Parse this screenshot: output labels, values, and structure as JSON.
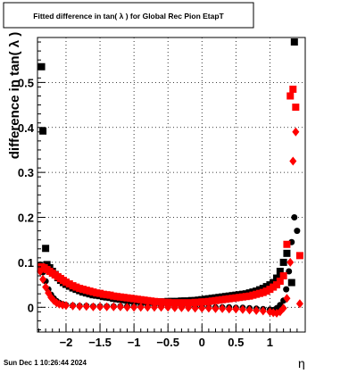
{
  "chart_data": {
    "type": "scatter",
    "title": "Fitted difference in tan( λ ) for Global Rec Pion EtapT",
    "xlabel": "η",
    "ylabel": "difference in tan( λ )",
    "xlim": [
      -2.42,
      1.52
    ],
    "ylim": [
      -0.055,
      0.6
    ],
    "x_ticks": [
      -2,
      -1.5,
      -1,
      -0.5,
      0,
      0.5,
      1
    ],
    "x_tick_labels": [
      "−2",
      "−1.5",
      "−1",
      "−0.5",
      "0",
      "0.5",
      "1"
    ],
    "y_ticks": [
      0,
      0.1,
      0.2,
      0.3,
      0.4,
      0.5
    ],
    "y_tick_labels": [
      "0",
      "0.1",
      "0.2",
      "0.3",
      "0.4",
      "0.5"
    ],
    "grid": true,
    "legend": "none",
    "series": [
      {
        "marker": "square",
        "color": "#000000",
        "points": [
          [
            -2.36,
            0.535
          ],
          [
            -2.34,
            0.392
          ],
          [
            -2.3,
            0.131
          ],
          [
            -2.28,
            0.095
          ],
          [
            -2.24,
            0.088
          ],
          [
            -2.2,
            0.08
          ],
          [
            -2.16,
            0.073
          ],
          [
            -2.12,
            0.066
          ],
          [
            -2.08,
            0.06
          ],
          [
            -2.04,
            0.055
          ],
          [
            -2.0,
            0.051
          ],
          [
            -1.95,
            0.047
          ],
          [
            -1.9,
            0.043
          ],
          [
            -1.85,
            0.04
          ],
          [
            -1.8,
            0.037
          ],
          [
            -1.75,
            0.034
          ],
          [
            -1.7,
            0.032
          ],
          [
            -1.65,
            0.03
          ],
          [
            -1.6,
            0.028
          ],
          [
            -1.55,
            0.027
          ],
          [
            -1.5,
            0.026
          ],
          [
            -1.45,
            0.024
          ],
          [
            -1.4,
            0.023
          ],
          [
            -1.35,
            0.022
          ],
          [
            -1.3,
            0.02
          ],
          [
            -1.25,
            0.019
          ],
          [
            -1.2,
            0.018
          ],
          [
            -1.15,
            0.017
          ],
          [
            -1.1,
            0.016
          ],
          [
            -1.05,
            0.015
          ],
          [
            -1.0,
            0.015
          ],
          [
            -0.95,
            0.014
          ],
          [
            -0.9,
            0.014
          ],
          [
            -0.85,
            0.013
          ],
          [
            -0.8,
            0.013
          ],
          [
            -0.75,
            0.013
          ],
          [
            -0.7,
            0.012
          ],
          [
            -0.65,
            0.012
          ],
          [
            -0.6,
            0.012
          ],
          [
            -0.55,
            0.012
          ],
          [
            -0.5,
            0.013
          ],
          [
            -0.45,
            0.013
          ],
          [
            -0.4,
            0.013
          ],
          [
            -0.35,
            0.013
          ],
          [
            -0.3,
            0.014
          ],
          [
            -0.25,
            0.014
          ],
          [
            -0.2,
            0.014
          ],
          [
            -0.15,
            0.015
          ],
          [
            -0.1,
            0.015
          ],
          [
            -0.05,
            0.016
          ],
          [
            0.0,
            0.017
          ],
          [
            0.05,
            0.018
          ],
          [
            0.1,
            0.019
          ],
          [
            0.15,
            0.02
          ],
          [
            0.2,
            0.021
          ],
          [
            0.25,
            0.022
          ],
          [
            0.3,
            0.023
          ],
          [
            0.35,
            0.024
          ],
          [
            0.4,
            0.025
          ],
          [
            0.45,
            0.026
          ],
          [
            0.5,
            0.027
          ],
          [
            0.55,
            0.028
          ],
          [
            0.6,
            0.029
          ],
          [
            0.65,
            0.03
          ],
          [
            0.7,
            0.032
          ],
          [
            0.75,
            0.034
          ],
          [
            0.8,
            0.036
          ],
          [
            0.85,
            0.039
          ],
          [
            0.9,
            0.042
          ],
          [
            0.95,
            0.046
          ],
          [
            1.0,
            0.05
          ],
          [
            1.05,
            0.055
          ],
          [
            1.1,
            0.065
          ],
          [
            1.15,
            0.08
          ],
          [
            1.2,
            0.1
          ],
          [
            1.25,
            0.12
          ],
          [
            1.32,
            0.055
          ],
          [
            1.36,
            0.59
          ]
        ]
      },
      {
        "marker": "circle",
        "color": "#000000",
        "points": [
          [
            -2.38,
            0.095
          ],
          [
            -2.34,
            0.078
          ],
          [
            -2.3,
            0.058
          ],
          [
            -2.26,
            0.04
          ],
          [
            -2.22,
            0.028
          ],
          [
            -2.18,
            0.02
          ],
          [
            -2.14,
            0.014
          ],
          [
            -2.1,
            0.01
          ],
          [
            -2.05,
            0.007
          ],
          [
            -2.0,
            0.005
          ],
          [
            -1.9,
            0.004
          ],
          [
            -1.8,
            0.003
          ],
          [
            -1.7,
            0.003
          ],
          [
            -1.6,
            0.002
          ],
          [
            -1.5,
            0.002
          ],
          [
            -1.4,
            0.002
          ],
          [
            -1.3,
            0.002
          ],
          [
            -1.2,
            0.002
          ],
          [
            -1.1,
            0.002
          ],
          [
            -1.0,
            0.002
          ],
          [
            -0.9,
            0.002
          ],
          [
            -0.8,
            0.002
          ],
          [
            -0.7,
            0.002
          ],
          [
            -0.6,
            0.002
          ],
          [
            -0.5,
            0.001
          ],
          [
            -0.4,
            0.001
          ],
          [
            -0.3,
            0.001
          ],
          [
            -0.2,
            0.001
          ],
          [
            -0.1,
            0.001
          ],
          [
            0.0,
            0.001
          ],
          [
            0.1,
            0.0
          ],
          [
            0.2,
            0.0
          ],
          [
            0.3,
            0.0
          ],
          [
            0.4,
            0.0
          ],
          [
            0.5,
            -0.001
          ],
          [
            0.6,
            -0.001
          ],
          [
            0.7,
            -0.002
          ],
          [
            0.8,
            -0.003
          ],
          [
            0.9,
            -0.004
          ],
          [
            1.0,
            -0.005
          ],
          [
            1.05,
            -0.006
          ],
          [
            1.1,
            -0.002
          ],
          [
            1.15,
            0.005
          ],
          [
            1.2,
            0.015
          ],
          [
            1.24,
            0.04
          ],
          [
            1.28,
            0.08
          ],
          [
            1.32,
            0.145
          ],
          [
            1.36,
            0.2
          ],
          [
            1.4,
            0.17
          ]
        ]
      },
      {
        "marker": "square",
        "color": "#ff0000",
        "points": [
          [
            -2.36,
            0.09
          ],
          [
            -2.32,
            0.088
          ],
          [
            -2.28,
            0.084
          ],
          [
            -2.24,
            0.08
          ],
          [
            -2.2,
            0.076
          ],
          [
            -2.16,
            0.072
          ],
          [
            -2.12,
            0.068
          ],
          [
            -2.08,
            0.064
          ],
          [
            -2.04,
            0.06
          ],
          [
            -2.0,
            0.056
          ],
          [
            -1.95,
            0.052
          ],
          [
            -1.9,
            0.048
          ],
          [
            -1.85,
            0.045
          ],
          [
            -1.8,
            0.042
          ],
          [
            -1.75,
            0.04
          ],
          [
            -1.7,
            0.038
          ],
          [
            -1.65,
            0.036
          ],
          [
            -1.6,
            0.034
          ],
          [
            -1.55,
            0.032
          ],
          [
            -1.5,
            0.031
          ],
          [
            -1.45,
            0.029
          ],
          [
            -1.4,
            0.028
          ],
          [
            -1.35,
            0.027
          ],
          [
            -1.3,
            0.025
          ],
          [
            -1.25,
            0.024
          ],
          [
            -1.2,
            0.023
          ],
          [
            -1.15,
            0.022
          ],
          [
            -1.1,
            0.021
          ],
          [
            -1.05,
            0.02
          ],
          [
            -1.0,
            0.019
          ],
          [
            -0.95,
            0.018
          ],
          [
            -0.9,
            0.017
          ],
          [
            -0.85,
            0.016
          ],
          [
            -0.8,
            0.015
          ],
          [
            -0.75,
            0.014
          ],
          [
            -0.7,
            0.013
          ],
          [
            -0.65,
            0.012
          ],
          [
            -0.6,
            0.012
          ],
          [
            -0.55,
            0.011
          ],
          [
            -0.5,
            0.011
          ],
          [
            -0.45,
            0.01
          ],
          [
            -0.4,
            0.01
          ],
          [
            -0.35,
            0.01
          ],
          [
            -0.3,
            0.01
          ],
          [
            -0.25,
            0.01
          ],
          [
            -0.2,
            0.01
          ],
          [
            -0.15,
            0.01
          ],
          [
            -0.1,
            0.011
          ],
          [
            -0.05,
            0.011
          ],
          [
            0.0,
            0.012
          ],
          [
            0.05,
            0.012
          ],
          [
            0.1,
            0.013
          ],
          [
            0.15,
            0.014
          ],
          [
            0.2,
            0.015
          ],
          [
            0.25,
            0.016
          ],
          [
            0.3,
            0.017
          ],
          [
            0.35,
            0.018
          ],
          [
            0.4,
            0.019
          ],
          [
            0.45,
            0.02
          ],
          [
            0.5,
            0.021
          ],
          [
            0.55,
            0.022
          ],
          [
            0.6,
            0.023
          ],
          [
            0.65,
            0.024
          ],
          [
            0.7,
            0.025
          ],
          [
            0.75,
            0.027
          ],
          [
            0.8,
            0.029
          ],
          [
            0.85,
            0.031
          ],
          [
            0.9,
            0.033
          ],
          [
            0.95,
            0.036
          ],
          [
            1.0,
            0.04
          ],
          [
            1.05,
            0.045
          ],
          [
            1.1,
            0.05
          ],
          [
            1.15,
            0.058
          ],
          [
            1.2,
            0.07
          ],
          [
            1.25,
            0.14
          ],
          [
            1.3,
            0.47
          ],
          [
            1.34,
            0.485
          ],
          [
            1.38,
            0.445
          ],
          [
            1.44,
            0.115
          ]
        ]
      },
      {
        "marker": "diamond",
        "color": "#ff0000",
        "points": [
          [
            -2.38,
            0.08
          ],
          [
            -2.34,
            0.062
          ],
          [
            -2.3,
            0.045
          ],
          [
            -2.26,
            0.032
          ],
          [
            -2.22,
            0.022
          ],
          [
            -2.18,
            0.015
          ],
          [
            -2.14,
            0.01
          ],
          [
            -2.1,
            0.007
          ],
          [
            -2.05,
            0.005
          ],
          [
            -2.0,
            0.004
          ],
          [
            -1.9,
            0.003
          ],
          [
            -1.8,
            0.002
          ],
          [
            -1.7,
            0.002
          ],
          [
            -1.6,
            0.001
          ],
          [
            -1.5,
            0.001
          ],
          [
            -1.4,
            0.001
          ],
          [
            -1.3,
            0.001
          ],
          [
            -1.2,
            0.001
          ],
          [
            -1.1,
            0.0
          ],
          [
            -1.0,
            0.0
          ],
          [
            -0.9,
            0.0
          ],
          [
            -0.8,
            0.0
          ],
          [
            -0.7,
            0.0
          ],
          [
            -0.6,
            0.0
          ],
          [
            -0.5,
            0.0
          ],
          [
            -0.4,
            -0.001
          ],
          [
            -0.3,
            -0.001
          ],
          [
            -0.2,
            -0.001
          ],
          [
            -0.1,
            -0.002
          ],
          [
            0.0,
            -0.002
          ],
          [
            0.1,
            -0.002
          ],
          [
            0.2,
            -0.003
          ],
          [
            0.3,
            -0.003
          ],
          [
            0.4,
            -0.004
          ],
          [
            0.5,
            -0.004
          ],
          [
            0.6,
            -0.005
          ],
          [
            0.7,
            -0.006
          ],
          [
            0.8,
            -0.007
          ],
          [
            0.9,
            -0.008
          ],
          [
            1.0,
            -0.01
          ],
          [
            1.05,
            -0.012
          ],
          [
            1.1,
            -0.013
          ],
          [
            1.15,
            -0.01
          ],
          [
            1.2,
            -0.002
          ],
          [
            1.25,
            0.02
          ],
          [
            1.3,
            0.1
          ],
          [
            1.34,
            0.325
          ],
          [
            1.38,
            0.39
          ],
          [
            1.44,
            0.008
          ]
        ]
      }
    ],
    "footer_text": "Sun Dec  1 10:26:44 2024"
  }
}
